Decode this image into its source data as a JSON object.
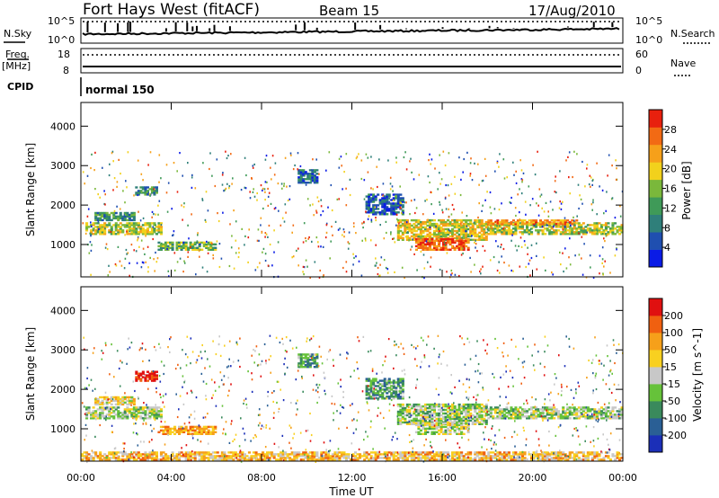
{
  "header": {
    "radar": "Fort Hays West (fitACF)",
    "beam": "Beam 15",
    "date": "17/Aug/2010"
  },
  "noise_panel": {
    "left_label": "N.Sky",
    "right_label": "N.Search",
    "left_ticks": [
      "10^5",
      "10^0"
    ],
    "right_ticks": [
      "10^5",
      "10^0"
    ]
  },
  "freq_panel": {
    "left_label_1": "Freq.",
    "left_label_2": "[MHz]",
    "right_label": "Nave",
    "left_ticks": [
      "18",
      "8"
    ],
    "right_ticks": [
      "60",
      "0"
    ]
  },
  "cpid": {
    "label": "CPID",
    "mode": "normal 150"
  },
  "chart_data": [
    {
      "type": "heatmap",
      "quantity": "Power",
      "ylabel": "Slant Range [km]",
      "xlabel": "Time UT",
      "xlim": [
        0,
        24
      ],
      "ylim": [
        180,
        4600
      ],
      "x_ticks": [
        "00:00",
        "04:00",
        "08:00",
        "12:00",
        "16:00",
        "20:00",
        "00:00"
      ],
      "y_ticks": [
        1000,
        2000,
        3000,
        4000
      ],
      "colorbar": {
        "label": "Power [dB]",
        "range": [
          0,
          32
        ],
        "ticks": [
          4,
          8,
          12,
          16,
          20,
          24,
          28
        ],
        "colors": [
          "#0a1be6",
          "#1f4fb0",
          "#2f7f7a",
          "#3f9a58",
          "#7ab83b",
          "#f2d11c",
          "#f6a01a",
          "#f26a14",
          "#e8200e"
        ]
      },
      "echo_regions": [
        {
          "t": [
            0.2,
            3.6
          ],
          "r": [
            1250,
            1550
          ],
          "level": 0.55
        },
        {
          "t": [
            0.6,
            2.4
          ],
          "r": [
            1600,
            1800
          ],
          "level": 0.35
        },
        {
          "t": [
            3.4,
            5.9
          ],
          "r": [
            850,
            1050
          ],
          "level": 0.45
        },
        {
          "t": [
            2.4,
            3.4
          ],
          "r": [
            2250,
            2450
          ],
          "level": 0.3
        },
        {
          "t": [
            9.6,
            10.4
          ],
          "r": [
            2550,
            2900
          ],
          "level": 0.2
        },
        {
          "t": [
            12.6,
            14.2
          ],
          "r": [
            1750,
            2250
          ],
          "level": 0.2
        },
        {
          "t": [
            14.0,
            18.0
          ],
          "r": [
            1100,
            1600
          ],
          "level": 0.6
        },
        {
          "t": [
            14.8,
            17.2
          ],
          "r": [
            850,
            1150
          ],
          "level": 0.85
        },
        {
          "t": [
            18.0,
            24.0
          ],
          "r": [
            1250,
            1550
          ],
          "level": 0.55
        },
        {
          "t": [
            18.0,
            22.0
          ],
          "r": [
            1500,
            1620
          ],
          "level": 0.75
        }
      ]
    },
    {
      "type": "heatmap",
      "quantity": "Velocity",
      "ylabel": "Slant Range [km]",
      "xlabel": "Time UT",
      "xlim": [
        0,
        24
      ],
      "ylim": [
        180,
        4600
      ],
      "x_ticks": [
        "00:00",
        "04:00",
        "08:00",
        "12:00",
        "16:00",
        "20:00",
        "00:00"
      ],
      "y_ticks": [
        1000,
        2000,
        3000,
        4000
      ],
      "colorbar": {
        "label": "Velocity [m s^-1]",
        "ticks": [
          "200",
          "100",
          "50",
          "15",
          "-15",
          "-50",
          "-100",
          "-200"
        ],
        "colors": [
          "#1b2fb8",
          "#2a5f95",
          "#3a8a5c",
          "#66c23a",
          "#c8c8c8",
          "#f8d020",
          "#f6a01a",
          "#f06010",
          "#e01010"
        ]
      },
      "echo_regions": [
        {
          "t": [
            0.2,
            3.6
          ],
          "r": [
            1250,
            1550
          ],
          "level": 0.45
        },
        {
          "t": [
            0.6,
            2.4
          ],
          "r": [
            1600,
            1800
          ],
          "level": 0.6
        },
        {
          "t": [
            3.4,
            5.9
          ],
          "r": [
            850,
            1050
          ],
          "level": 0.72
        },
        {
          "t": [
            2.4,
            3.4
          ],
          "r": [
            2200,
            2450
          ],
          "level": 0.95
        },
        {
          "t": [
            9.6,
            10.4
          ],
          "r": [
            2550,
            2900
          ],
          "level": 0.3
        },
        {
          "t": [
            12.6,
            14.2
          ],
          "r": [
            1750,
            2250
          ],
          "level": 0.3
        },
        {
          "t": [
            14.0,
            18.0
          ],
          "r": [
            1100,
            1600
          ],
          "level": 0.45
        },
        {
          "t": [
            14.8,
            17.2
          ],
          "r": [
            850,
            1150
          ],
          "level": 0.5
        },
        {
          "t": [
            18.0,
            24.0
          ],
          "r": [
            1250,
            1550
          ],
          "level": 0.45
        },
        {
          "t": [
            0.0,
            24.0
          ],
          "r": [
            200,
            400
          ],
          "level": 0.65
        }
      ]
    }
  ]
}
